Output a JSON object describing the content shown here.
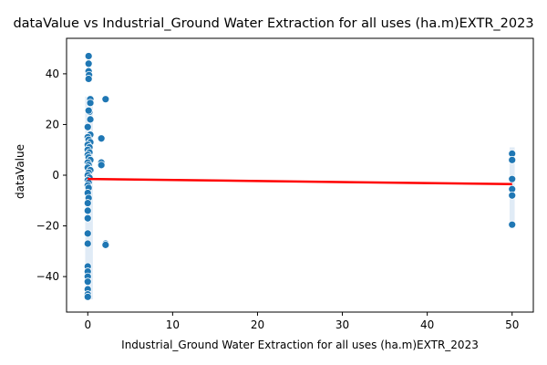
{
  "chart_data": {
    "type": "scatter",
    "title": "dataValue vs Industrial_Ground Water Extraction for all uses (ha.m)EXTR_2023",
    "xlabel": "Industrial_Ground Water Extraction for all uses (ha.m)EXTR_2023",
    "ylabel": "dataValue",
    "xlim": [
      -2.5,
      52.5
    ],
    "ylim": [
      -54,
      54
    ],
    "x_ticks": [
      0,
      10,
      20,
      30,
      40,
      50
    ],
    "y_ticks": [
      -40,
      -20,
      0,
      20,
      40
    ],
    "grid": false,
    "point_color": "#1f77b4",
    "regression_color": "#ff0000",
    "points": [
      {
        "x": 0.1,
        "y": 47
      },
      {
        "x": 0.1,
        "y": 44
      },
      {
        "x": 0.1,
        "y": 41
      },
      {
        "x": 0.15,
        "y": 39.5
      },
      {
        "x": 0.1,
        "y": 38
      },
      {
        "x": 0.3,
        "y": 30
      },
      {
        "x": 0.3,
        "y": 28.5
      },
      {
        "x": 0.2,
        "y": 25
      },
      {
        "x": 0.1,
        "y": 25.5
      },
      {
        "x": 0.3,
        "y": 22
      },
      {
        "x": 0.0,
        "y": 19
      },
      {
        "x": 0.3,
        "y": 16
      },
      {
        "x": 0.0,
        "y": 15
      },
      {
        "x": 0.1,
        "y": 14
      },
      {
        "x": 0.3,
        "y": 13
      },
      {
        "x": 0.0,
        "y": 12
      },
      {
        "x": 0.2,
        "y": 11
      },
      {
        "x": 0.0,
        "y": 10
      },
      {
        "x": 0.2,
        "y": 9
      },
      {
        "x": 0.0,
        "y": 8
      },
      {
        "x": 0.1,
        "y": 7
      },
      {
        "x": 0.3,
        "y": 6
      },
      {
        "x": 0.0,
        "y": 5
      },
      {
        "x": 0.1,
        "y": 4
      },
      {
        "x": 0.0,
        "y": 3
      },
      {
        "x": 0.3,
        "y": 2
      },
      {
        "x": 0.1,
        "y": 1
      },
      {
        "x": 0.0,
        "y": 0
      },
      {
        "x": 0.2,
        "y": -1
      },
      {
        "x": 0.0,
        "y": -2
      },
      {
        "x": 0.1,
        "y": -3
      },
      {
        "x": 0.0,
        "y": -4
      },
      {
        "x": 0.1,
        "y": -5
      },
      {
        "x": 0.0,
        "y": -7
      },
      {
        "x": 0.1,
        "y": -9
      },
      {
        "x": 0.0,
        "y": -11
      },
      {
        "x": 0.0,
        "y": -14
      },
      {
        "x": 0.0,
        "y": -17
      },
      {
        "x": 0.0,
        "y": -23
      },
      {
        "x": 0.0,
        "y": -27
      },
      {
        "x": 0.0,
        "y": -36
      },
      {
        "x": 0.0,
        "y": -38
      },
      {
        "x": 0.0,
        "y": -40
      },
      {
        "x": 0.0,
        "y": -42
      },
      {
        "x": 0.0,
        "y": -45
      },
      {
        "x": 0.0,
        "y": -47
      },
      {
        "x": 0.0,
        "y": -48
      },
      {
        "x": 1.6,
        "y": 14.5
      },
      {
        "x": 1.6,
        "y": 5
      },
      {
        "x": 1.6,
        "y": 4
      },
      {
        "x": 2.1,
        "y": 30
      },
      {
        "x": 2.1,
        "y": -27
      },
      {
        "x": 2.1,
        "y": -27.5
      },
      {
        "x": 50,
        "y": 8.5
      },
      {
        "x": 50,
        "y": 6
      },
      {
        "x": 50,
        "y": -1.5
      },
      {
        "x": 50,
        "y": -5.5
      },
      {
        "x": 50,
        "y": -8
      },
      {
        "x": 50,
        "y": -19.5
      }
    ],
    "regression_line": {
      "x": [
        0,
        50
      ],
      "y": [
        -1.5,
        -3.5
      ]
    }
  }
}
